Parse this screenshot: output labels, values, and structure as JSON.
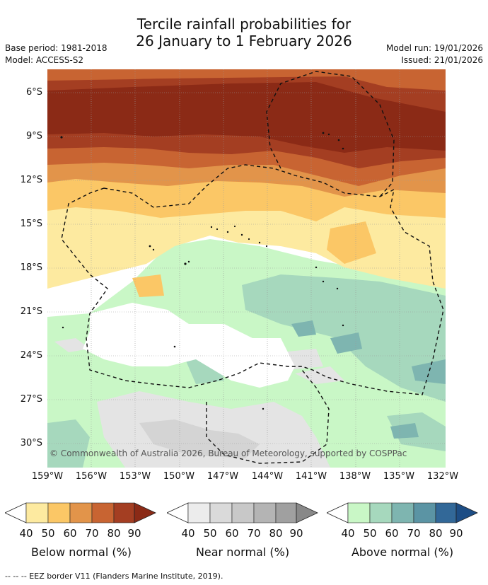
{
  "title": {
    "line1": "Tercile rainfall probabilities for",
    "line2": "26 January to 1 February 2026"
  },
  "meta_left": {
    "base_period": "Base period: 1981-2018",
    "model": "Model: ACCESS-S2"
  },
  "meta_right": {
    "model_run": "Model run: 19/01/2026",
    "issued": "Issued: 21/01/2026"
  },
  "axes": {
    "lat_labels": [
      "6°S",
      "9°S",
      "12°S",
      "15°S",
      "18°S",
      "21°S",
      "24°S",
      "27°S",
      "30°S"
    ],
    "lon_labels": [
      "159°W",
      "156°W",
      "153°W",
      "150°W",
      "147°W",
      "144°W",
      "141°W",
      "138°W",
      "135°W",
      "132°W"
    ]
  },
  "copyright": "© Commonwealth of Australia 2026, Bureau of Meteorology, supported by COSPPac",
  "colorbars": [
    {
      "name": "below",
      "title": "Below normal (%)",
      "ticks": [
        "40",
        "50",
        "60",
        "70",
        "80",
        "90"
      ],
      "colors": [
        "#fdeaa0",
        "#fbc766",
        "#e2944a",
        "#c86432",
        "#a43e22",
        "#8b2a16"
      ]
    },
    {
      "name": "near",
      "title": "Near normal (%)",
      "ticks": [
        "40",
        "50",
        "60",
        "70",
        "80",
        "90"
      ],
      "colors": [
        "#ececec",
        "#dadada",
        "#c8c8c8",
        "#b4b4b4",
        "#a0a0a0",
        "#888888"
      ]
    },
    {
      "name": "above",
      "title": "Above normal (%)",
      "ticks": [
        "40",
        "50",
        "60",
        "70",
        "80",
        "90"
      ],
      "colors": [
        "#c9f7c6",
        "#a6d8bd",
        "#7eb5b0",
        "#5b94a4",
        "#326898",
        "#1d4d85"
      ]
    }
  ],
  "footer": "--  --  -- EEZ border V11 (Flanders Marine Institute, 2019).",
  "colors": {
    "below_90": "#8b2a16",
    "below_80": "#a43e22",
    "below_70": "#c86432",
    "below_60": "#e2944a",
    "below_50": "#fbc766",
    "below_40": "#fdeaa0",
    "near_40": "#ececec",
    "near_50": "#dadada",
    "above_40": "#c9f7c6",
    "above_50": "#a6d8bd",
    "above_60": "#7eb5b0"
  }
}
